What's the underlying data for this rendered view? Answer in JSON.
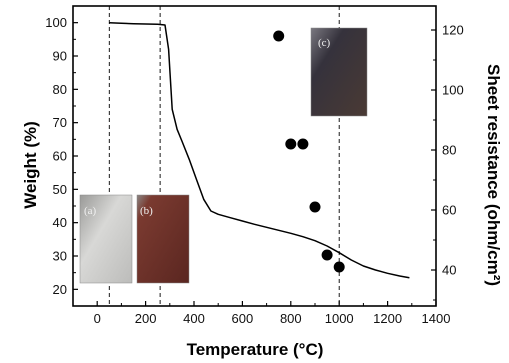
{
  "chart_data": {
    "type": "line",
    "xlabel": "Temperature (°C)",
    "ylabel_left": "Weight (%)",
    "ylabel_right": "Sheet resistance (ohm/cm²)",
    "xlim": [
      -100,
      1400
    ],
    "ylim_left": [
      15,
      105
    ],
    "ylim_right": [
      28,
      128
    ],
    "x_ticks": [
      0,
      200,
      400,
      600,
      800,
      1000,
      1200,
      1400
    ],
    "x_tick_labels": [
      "0",
      "200",
      "400",
      "600",
      "800",
      "1000",
      "1200",
      "1400"
    ],
    "y_left_ticks": [
      20,
      30,
      40,
      50,
      60,
      70,
      80,
      90,
      100
    ],
    "y_left_tick_labels": [
      "20",
      "30",
      "40",
      "50",
      "60",
      "70",
      "80",
      "90",
      "100"
    ],
    "y_right_ticks": [
      40,
      60,
      80,
      100,
      120
    ],
    "y_right_tick_labels": [
      "40",
      "60",
      "80",
      "100",
      "120"
    ],
    "series": [
      {
        "axis": "left",
        "style": "line",
        "color": "#000000",
        "x": [
          50,
          100,
          150,
          200,
          250,
          280,
          295,
          310,
          330,
          350,
          380,
          410,
          440,
          470,
          500,
          550,
          600,
          650,
          700,
          750,
          800,
          850,
          900,
          950,
          1000,
          1050,
          1100,
          1150,
          1200,
          1250,
          1290
        ],
        "y": [
          100,
          99.8,
          99.7,
          99.6,
          99.5,
          99.3,
          92,
          74,
          68,
          64.5,
          59,
          53,
          47,
          43.5,
          42.5,
          41.5,
          40.5,
          39.5,
          38.6,
          37.7,
          36.8,
          35.8,
          34.6,
          33,
          31,
          28.8,
          27,
          25.8,
          24.8,
          24,
          23.5
        ]
      },
      {
        "axis": "right",
        "style": "scatter",
        "color": "#000000",
        "x": [
          750,
          800,
          850,
          900,
          950,
          1000
        ],
        "y": [
          118,
          82,
          82,
          61,
          45,
          41
        ]
      }
    ],
    "vertical_reference_lines": [
      50,
      260,
      1000
    ],
    "insets": [
      {
        "label": "(a)"
      },
      {
        "label": "(b)"
      },
      {
        "label": "(c)"
      }
    ]
  },
  "colors": {
    "axis": "#000000",
    "inset_a_fill": "#c8c8c6",
    "inset_b_fill": "#6b3028",
    "inset_c_fill": "#3a3642"
  }
}
